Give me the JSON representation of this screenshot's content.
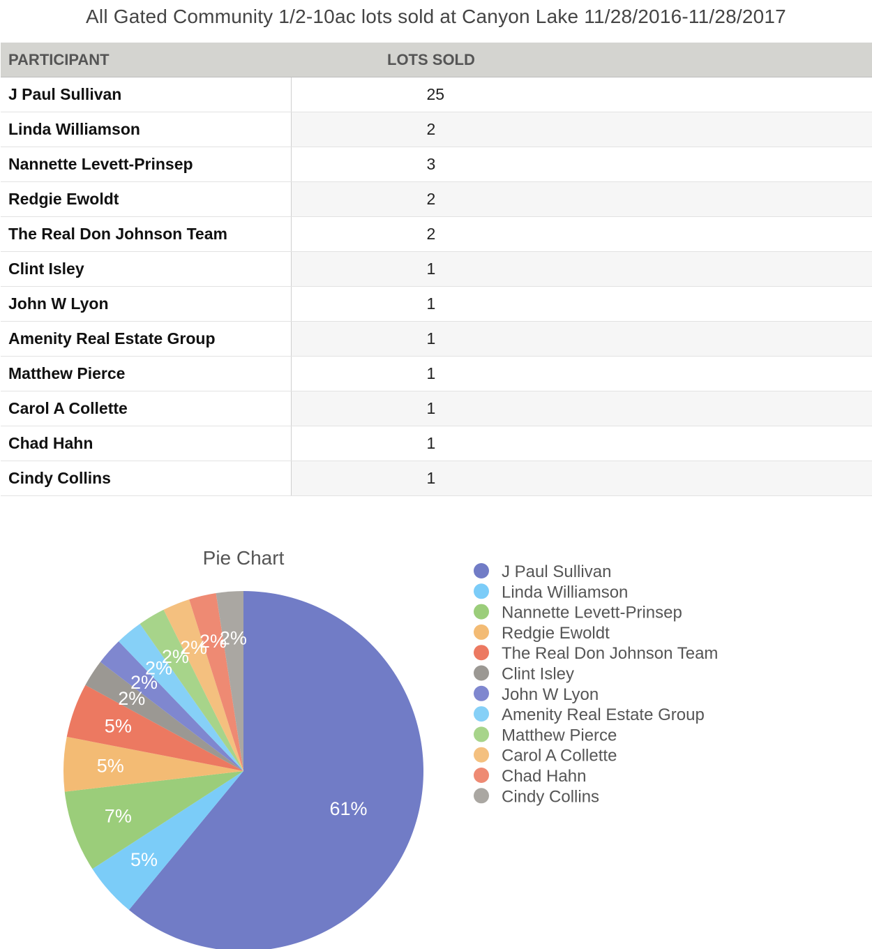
{
  "title": "All Gated Community 1/2-10ac lots sold at Canyon Lake 11/28/2016-11/28/2017",
  "table": {
    "headers": [
      "PARTICIPANT",
      "LOTS SOLD"
    ],
    "rows": [
      {
        "participant": "J Paul Sullivan",
        "lots_sold": "25"
      },
      {
        "participant": "Linda Williamson",
        "lots_sold": "2"
      },
      {
        "participant": "Nannette Levett-Prinsep",
        "lots_sold": "3"
      },
      {
        "participant": "Redgie Ewoldt",
        "lots_sold": "2"
      },
      {
        "participant": "The Real Don Johnson Team",
        "lots_sold": "2"
      },
      {
        "participant": "Clint Isley",
        "lots_sold": "1"
      },
      {
        "participant": "John W Lyon",
        "lots_sold": "1"
      },
      {
        "participant": "Amenity Real Estate Group",
        "lots_sold": "1"
      },
      {
        "participant": "Matthew Pierce",
        "lots_sold": "1"
      },
      {
        "participant": "Carol A Collette",
        "lots_sold": "1"
      },
      {
        "participant": "Chad Hahn",
        "lots_sold": "1"
      },
      {
        "participant": "Cindy Collins",
        "lots_sold": "1"
      }
    ]
  },
  "chart_data": {
    "type": "pie",
    "title": "Pie Chart",
    "categories": [
      "J Paul Sullivan",
      "Linda Williamson",
      "Nannette Levett-Prinsep",
      "Redgie Ewoldt",
      "The Real Don Johnson Team",
      "Clint Isley",
      "John W Lyon",
      "Amenity Real Estate Group",
      "Matthew Pierce",
      "Carol A Collette",
      "Chad Hahn",
      "Cindy Collins"
    ],
    "values": [
      25,
      2,
      3,
      2,
      2,
      1,
      1,
      1,
      1,
      1,
      1,
      1
    ],
    "percent_labels": [
      "61%",
      "5%",
      "7%",
      "5%",
      "5%",
      "2%",
      "2%",
      "2%",
      "2%",
      "2%",
      "2%",
      "2%"
    ],
    "colors": [
      "#717cc6",
      "#7bccf8",
      "#9bcd7a",
      "#f3bb74",
      "#ec7961",
      "#9b9893",
      "#7f87cf",
      "#86d0f7",
      "#a7d48a",
      "#f4c07f",
      "#ee8a73",
      "#aaa7a2"
    ],
    "legend_placement": "right"
  }
}
